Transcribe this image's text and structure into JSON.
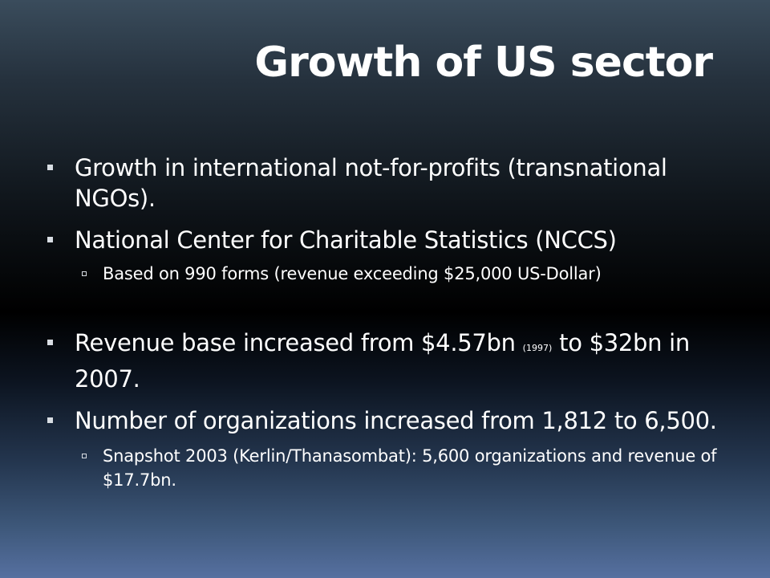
{
  "slide": {
    "title": "Growth of US sector",
    "bullets": [
      {
        "text": "Growth in international not-for-profits (transnational NGOs)."
      },
      {
        "text": "National Center for Charitable Statistics (NCCS)",
        "sub": [
          "Based on 990 forms (revenue exceeding $25,000 US-Dollar)"
        ]
      },
      {
        "text_before": "Revenue base increased from $4.57bn",
        "small": "(1997)",
        "text_after": "to $32bn in 2007."
      },
      {
        "text": "Number of organizations increased from 1,812 to 6,500.",
        "sub": [
          "Snapshot 2003 (Kerlin/Thanasombat): 5,600 organizations and revenue of $17.7bn."
        ]
      }
    ]
  },
  "colors": {
    "bullet_marker": "#d8dde3",
    "text": "#ffffff"
  }
}
